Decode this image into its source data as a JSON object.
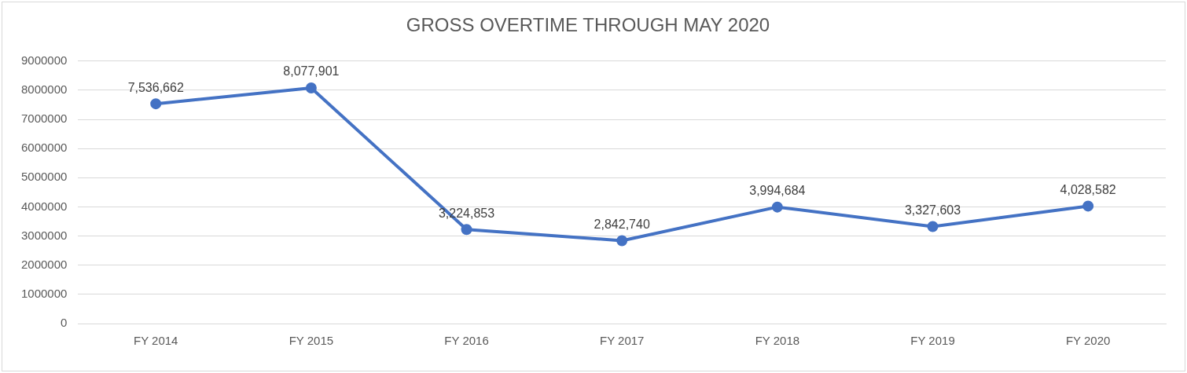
{
  "chart_data": {
    "type": "line",
    "title": "GROSS OVERTIME THROUGH MAY 2020",
    "categories": [
      "FY 2014",
      "FY 2015",
      "FY 2016",
      "FY 2017",
      "FY 2018",
      "FY 2019",
      "FY 2020"
    ],
    "series": [
      {
        "color": "#4472c4",
        "values": [
          7536662,
          8077901,
          3224853,
          2842740,
          3994684,
          3327603,
          4028582
        ],
        "value_labels": [
          "7,536,662",
          "8,077,901",
          "3,224,853",
          "2,842,740",
          "3,994,684",
          "3,327,603",
          "4,028,582"
        ]
      }
    ],
    "ylim": [
      0,
      9000000
    ],
    "yticks": [
      0,
      1000000,
      2000000,
      3000000,
      4000000,
      5000000,
      6000000,
      7000000,
      8000000,
      9000000
    ],
    "grid": "y",
    "legend": false,
    "marker": "circle",
    "line_style": "solid"
  }
}
